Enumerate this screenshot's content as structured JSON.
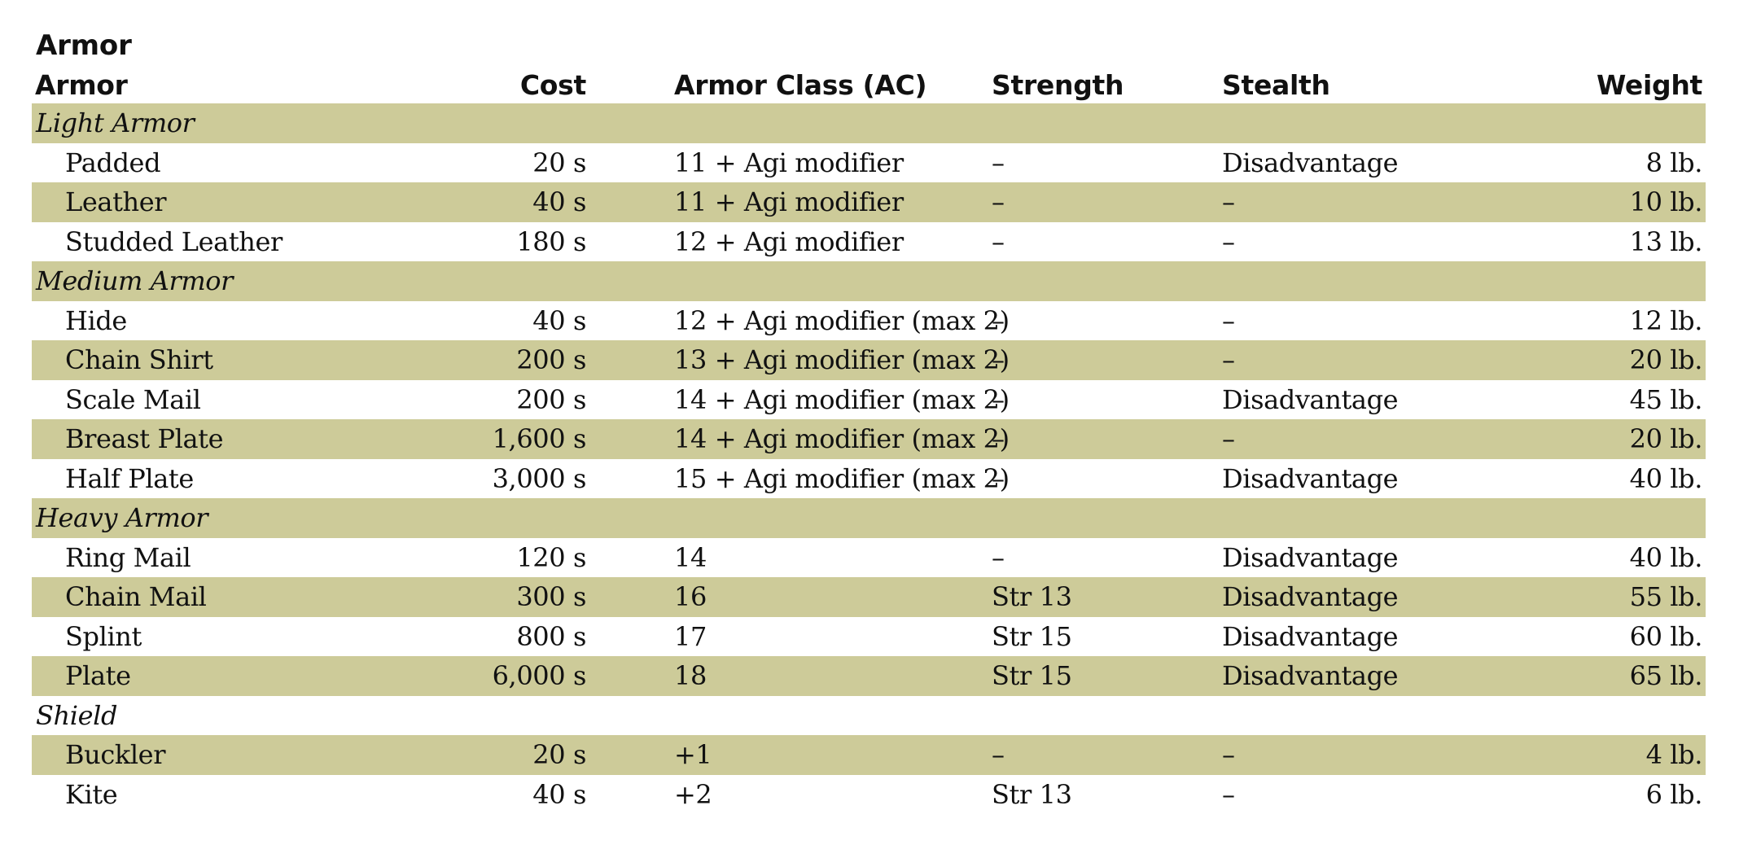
{
  "caption": "Armor",
  "columns": [
    "Armor",
    "Cost",
    "Armor Class (AC)",
    "Strength",
    "Stealth",
    "Weight"
  ],
  "rows": [
    {
      "type": "category",
      "label": "Light Armor",
      "shade": true
    },
    {
      "type": "item",
      "shade": false,
      "cells": [
        "Padded",
        "20 s",
        "11 + Agi modifier",
        "–",
        "Disadvantage",
        "8 lb."
      ]
    },
    {
      "type": "item",
      "shade": true,
      "cells": [
        "Leather",
        "40 s",
        "11 + Agi modifier",
        "–",
        "–",
        "10 lb."
      ]
    },
    {
      "type": "item",
      "shade": false,
      "cells": [
        "Studded Leather",
        "180 s",
        "12 + Agi modifier",
        "–",
        "–",
        "13 lb."
      ]
    },
    {
      "type": "category",
      "label": "Medium Armor",
      "shade": true
    },
    {
      "type": "item",
      "shade": false,
      "cells": [
        "Hide",
        "40 s",
        "12 + Agi modifier (max 2)",
        "–",
        "–",
        "12 lb."
      ]
    },
    {
      "type": "item",
      "shade": true,
      "cells": [
        "Chain Shirt",
        "200 s",
        "13 + Agi modifier (max 2)",
        "–",
        "–",
        "20 lb."
      ]
    },
    {
      "type": "item",
      "shade": false,
      "cells": [
        "Scale Mail",
        "200 s",
        "14 + Agi modifier (max 2)",
        "–",
        "Disadvantage",
        "45 lb."
      ]
    },
    {
      "type": "item",
      "shade": true,
      "cells": [
        "Breast Plate",
        "1,600 s",
        "14 + Agi modifier (max 2)",
        "–",
        "–",
        "20 lb."
      ]
    },
    {
      "type": "item",
      "shade": false,
      "cells": [
        "Half Plate",
        "3,000 s",
        "15 + Agi modifier (max 2)",
        "–",
        "Disadvantage",
        "40 lb."
      ]
    },
    {
      "type": "category",
      "label": "Heavy Armor",
      "shade": true
    },
    {
      "type": "item",
      "shade": false,
      "cells": [
        "Ring Mail",
        "120 s",
        "14",
        "–",
        "Disadvantage",
        "40 lb."
      ]
    },
    {
      "type": "item",
      "shade": true,
      "cells": [
        "Chain Mail",
        "300 s",
        "16",
        "Str 13",
        "Disadvantage",
        "55 lb."
      ]
    },
    {
      "type": "item",
      "shade": false,
      "cells": [
        "Splint",
        "800 s",
        "17",
        "Str 15",
        "Disadvantage",
        "60 lb."
      ]
    },
    {
      "type": "item",
      "shade": true,
      "cells": [
        "Plate",
        "6,000 s",
        "18",
        "Str 15",
        "Disadvantage",
        "65 lb."
      ]
    },
    {
      "type": "category",
      "label": "Shield",
      "shade": false
    },
    {
      "type": "item",
      "shade": true,
      "cells": [
        "Buckler",
        "20 s",
        "+1",
        "–",
        "–",
        "4 lb."
      ]
    },
    {
      "type": "item",
      "shade": false,
      "cells": [
        "Kite",
        "40 s",
        "+2",
        "Str 13",
        "–",
        "6 lb."
      ]
    }
  ],
  "colors": {
    "row_shade": "#cdcb99",
    "text": "#111111",
    "background": "#ffffff"
  }
}
